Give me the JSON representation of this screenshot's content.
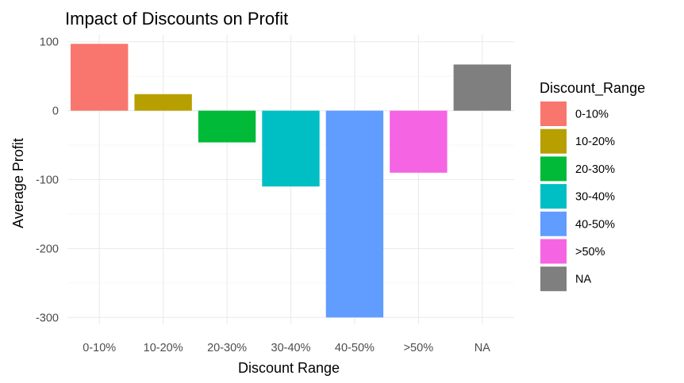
{
  "chart_data": {
    "type": "bar",
    "title": "Impact of Discounts on Profit",
    "xlabel": "Discount Range",
    "ylabel": "Average Profit",
    "categories": [
      "0-10%",
      "10-20%",
      "20-30%",
      "30-40%",
      "40-50%",
      ">50%",
      "NA"
    ],
    "values": [
      97,
      24,
      -46,
      -110,
      -300,
      -90,
      67
    ],
    "colors": [
      "#F8766D",
      "#B79F00",
      "#00BA38",
      "#00BFC4",
      "#619CFF",
      "#F564E3",
      "#7F7F7F"
    ],
    "ylim": [
      -310,
      110
    ],
    "yticks": [
      100,
      0,
      -100,
      -200,
      -300
    ],
    "grid": true,
    "legend": {
      "title": "Discount_Range",
      "placement": "right",
      "entries": [
        "0-10%",
        "10-20%",
        "20-30%",
        "30-40%",
        "40-50%",
        ">50%",
        "NA"
      ]
    }
  }
}
